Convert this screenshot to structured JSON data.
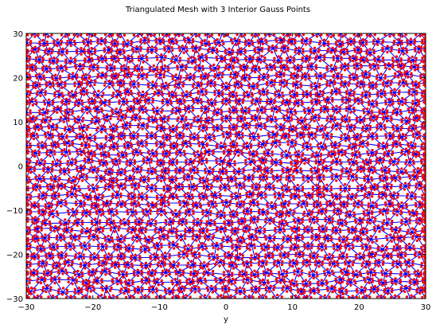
{
  "chart_data": {
    "type": "scatter",
    "title": "Triangulated Mesh with 3 Interior Gauss Points",
    "xlabel": "y",
    "ylabel": "",
    "xlim": [
      -30,
      30
    ],
    "ylim": [
      -30,
      30
    ],
    "xticks": [
      -30,
      -20,
      -10,
      0,
      10,
      20,
      30
    ],
    "yticks": [
      -30,
      -20,
      -10,
      0,
      10,
      20,
      30
    ],
    "xtick_labels": [
      "−30",
      "−20",
      "−10",
      "0",
      "10",
      "20",
      "30"
    ],
    "ytick_labels": [
      "−30",
      "−20",
      "−10",
      "0",
      "10",
      "20",
      "30"
    ],
    "grid": false,
    "legend": "none",
    "mesh": {
      "nominal_node_spacing": 2.2,
      "jitter": 0.28,
      "edge_color": "#0000ff",
      "node_color": "#0000ff"
    },
    "series": [
      {
        "marker": "dot",
        "color": "#ff0000",
        "points_per_triangle": 3,
        "barycentric": [
          [
            0.6667,
            0.1667,
            0.1667
          ],
          [
            0.1667,
            0.6667,
            0.1667
          ],
          [
            0.1667,
            0.1667,
            0.6667
          ]
        ]
      }
    ]
  }
}
